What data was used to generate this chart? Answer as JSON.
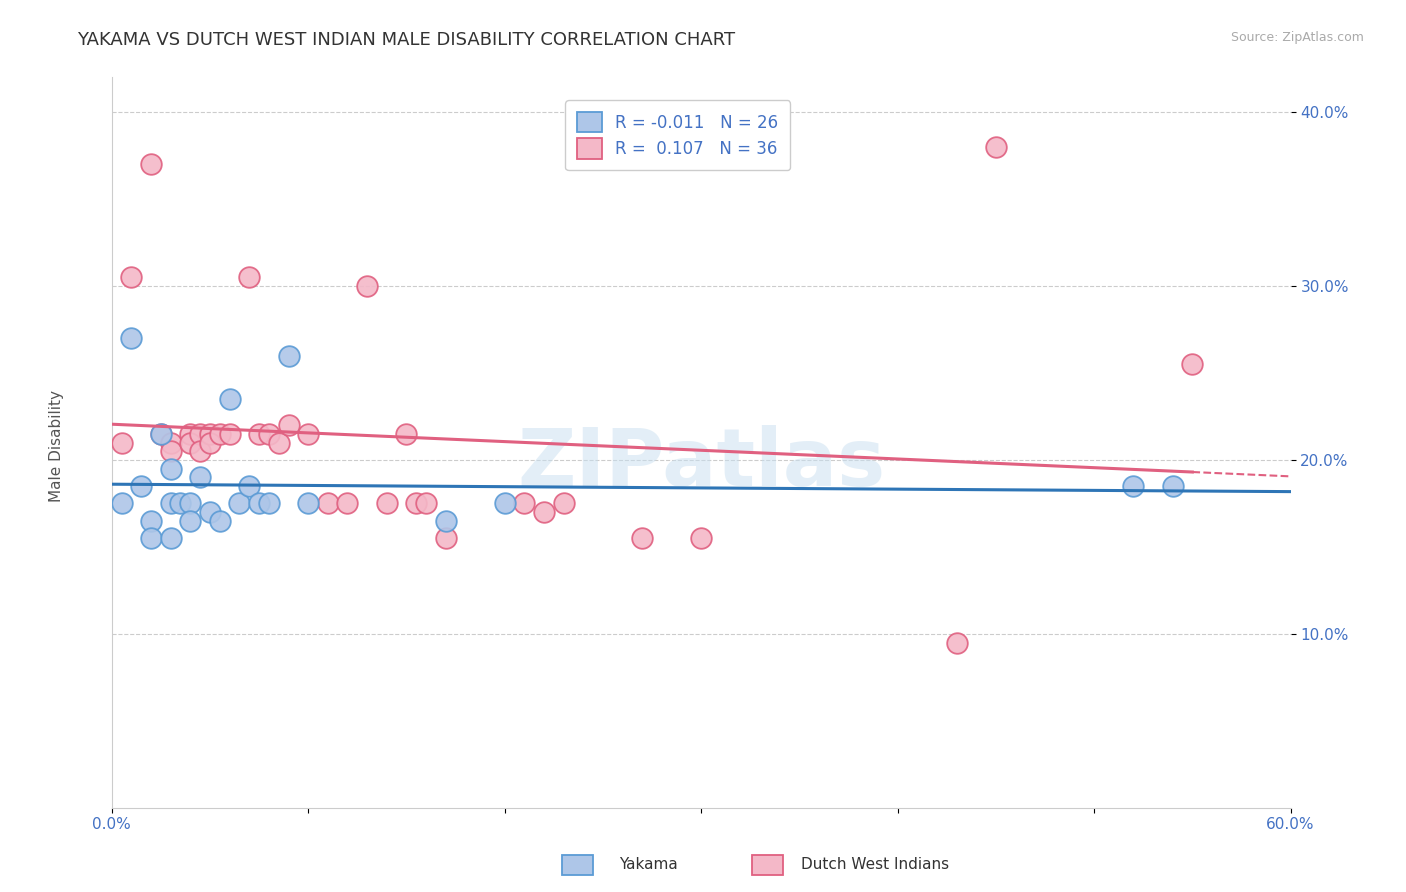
{
  "title": "YAKAMA VS DUTCH WEST INDIAN MALE DISABILITY CORRELATION CHART",
  "source_text": "Source: ZipAtlas.com",
  "xlabel": "",
  "ylabel": "Male Disability",
  "xlim": [
    0.0,
    0.6
  ],
  "ylim": [
    0.0,
    0.42
  ],
  "xtick_labels": [
    "0.0%",
    "",
    "",
    "",
    "",
    "",
    "60.0%"
  ],
  "xtick_vals": [
    0.0,
    0.1,
    0.2,
    0.3,
    0.4,
    0.5,
    0.6
  ],
  "ytick_labels": [
    "10.0%",
    "20.0%",
    "30.0%",
    "40.0%"
  ],
  "ytick_vals": [
    0.1,
    0.2,
    0.3,
    0.4
  ],
  "grid_color": "#cccccc",
  "background_color": "#ffffff",
  "series1_name": "Yakama",
  "series1_color": "#aec6e8",
  "series1_edge_color": "#5b9bd5",
  "series1_R": -0.011,
  "series1_N": 26,
  "series1_line_color": "#2e75b6",
  "series2_name": "Dutch West Indians",
  "series2_color": "#f4b8c8",
  "series2_edge_color": "#e06080",
  "series2_R": 0.107,
  "series2_N": 36,
  "series2_line_color": "#e06080",
  "legend_text_color": "#4472c4",
  "watermark": "ZIPatlas",
  "title_fontsize": 13,
  "axis_label_fontsize": 11,
  "tick_fontsize": 11,
  "yakama_x": [
    0.005,
    0.01,
    0.015,
    0.02,
    0.02,
    0.025,
    0.03,
    0.03,
    0.03,
    0.035,
    0.04,
    0.04,
    0.045,
    0.05,
    0.055,
    0.06,
    0.065,
    0.07,
    0.075,
    0.08,
    0.09,
    0.1,
    0.17,
    0.2,
    0.52,
    0.54
  ],
  "yakama_y": [
    0.175,
    0.27,
    0.185,
    0.165,
    0.155,
    0.215,
    0.195,
    0.175,
    0.155,
    0.175,
    0.175,
    0.165,
    0.19,
    0.17,
    0.165,
    0.235,
    0.175,
    0.185,
    0.175,
    0.175,
    0.26,
    0.175,
    0.165,
    0.175,
    0.185,
    0.185
  ],
  "dutch_x": [
    0.005,
    0.01,
    0.02,
    0.025,
    0.03,
    0.03,
    0.04,
    0.04,
    0.045,
    0.045,
    0.05,
    0.05,
    0.055,
    0.06,
    0.07,
    0.075,
    0.08,
    0.085,
    0.09,
    0.1,
    0.11,
    0.12,
    0.13,
    0.14,
    0.15,
    0.155,
    0.16,
    0.17,
    0.21,
    0.22,
    0.23,
    0.27,
    0.3,
    0.43,
    0.45,
    0.55
  ],
  "dutch_y": [
    0.21,
    0.305,
    0.37,
    0.215,
    0.21,
    0.205,
    0.215,
    0.21,
    0.215,
    0.205,
    0.215,
    0.21,
    0.215,
    0.215,
    0.305,
    0.215,
    0.215,
    0.21,
    0.22,
    0.215,
    0.175,
    0.175,
    0.3,
    0.175,
    0.215,
    0.175,
    0.175,
    0.155,
    0.175,
    0.17,
    0.175,
    0.155,
    0.155,
    0.095,
    0.38,
    0.255
  ]
}
